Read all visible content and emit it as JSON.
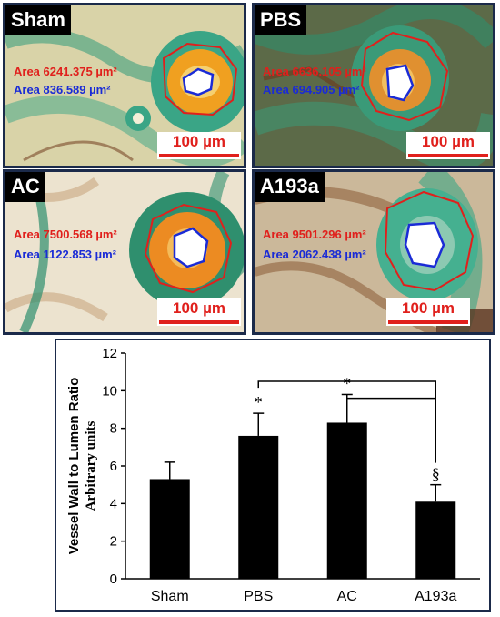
{
  "panels": [
    {
      "label": "Sham",
      "area_outer": "Area 6241.375 µm²",
      "area_inner": "Area 836.589 µm²",
      "scale": "100 µm"
    },
    {
      "label": "PBS",
      "area_outer": "Area 6636.105 µm²",
      "area_inner": "Area 694.905 µm²",
      "scale": "100 µm"
    },
    {
      "label": "AC",
      "area_outer": "Area 7500.568 µm²",
      "area_inner": "Area 1122.853 µm²",
      "scale": "100 µm"
    },
    {
      "label": "A193a",
      "area_outer": "Area 9501.296 µm²",
      "area_inner": "Area 2062.438 µm²",
      "scale": "100 µm"
    }
  ],
  "colors": {
    "outer_outline": "#e0201c",
    "inner_outline": "#1a2bd6",
    "frame": "#1b2a4a"
  },
  "chart_data": {
    "type": "bar",
    "categories": [
      "Sham",
      "PBS",
      "AC",
      "A193a"
    ],
    "values": [
      5.3,
      7.6,
      8.3,
      4.1
    ],
    "errors": [
      0.9,
      1.2,
      1.5,
      0.9
    ],
    "ylabel": "Vessel Wall to Lumen Ratio",
    "ylabel2": "Arbitrary units",
    "ylim": [
      0,
      12
    ],
    "yticks": [
      "0",
      "2",
      "4",
      "6",
      "8",
      "10",
      "12"
    ],
    "significance": [
      {
        "category": "PBS",
        "marker": "*"
      },
      {
        "category": "AC",
        "marker": "*"
      },
      {
        "category": "A193a",
        "marker": "§"
      }
    ],
    "bar_color": "#000000",
    "grid": false
  }
}
